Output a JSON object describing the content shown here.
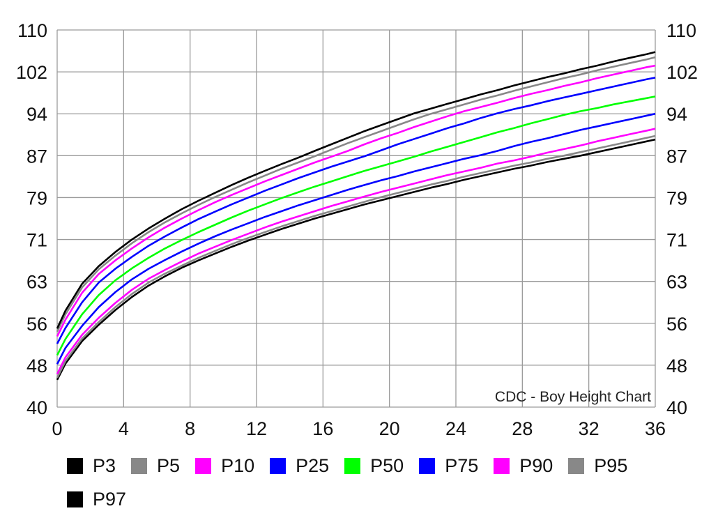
{
  "chart_data": {
    "type": "line",
    "description": "CDC - Boy Height Chart",
    "x_ticks": [
      "0",
      "4",
      "8",
      "12",
      "16",
      "20",
      "24",
      "28",
      "32",
      "36"
    ],
    "y_ticks": [
      "40",
      "48",
      "56",
      "63",
      "71",
      "79",
      "87",
      "94",
      "102",
      "110"
    ],
    "xlim": [
      0,
      36
    ],
    "ylim": [
      40,
      110
    ],
    "grid": true,
    "legend_position": "bottom",
    "x": [
      0,
      0.5,
      1.5,
      2.5,
      3.5,
      4.5,
      5.5,
      6.5,
      7.5,
      8.5,
      9.5,
      10.5,
      11.5,
      12.5,
      13.5,
      14.5,
      15.5,
      16.5,
      17.5,
      18.5,
      19.5,
      20.5,
      21.5,
      22.5,
      23.5,
      24.5,
      25.5,
      26.5,
      27.5,
      28.5,
      29.5,
      30.5,
      31.5,
      32.5,
      33.5,
      34.5,
      35.5,
      36
    ],
    "series": [
      {
        "name": "P3",
        "color": "#000000",
        "values": [
          45.2,
          48.3,
          52.6,
          55.7,
          58.2,
          60.4,
          62.3,
          64.0,
          65.6,
          67.0,
          68.3,
          69.6,
          70.8,
          71.9,
          73.0,
          74.0,
          75.0,
          75.9,
          76.8,
          77.7,
          78.5,
          79.3,
          80.1,
          80.9,
          81.6,
          82.4,
          83.1,
          83.8,
          84.5,
          85.1,
          85.8,
          86.4,
          87.0,
          87.6,
          88.2,
          88.8,
          89.4,
          89.7
        ]
      },
      {
        "name": "P5",
        "color": "#888888",
        "values": [
          45.6,
          48.8,
          53.1,
          56.2,
          58.7,
          60.9,
          62.8,
          64.5,
          66.0,
          67.5,
          68.8,
          70.1,
          71.3,
          72.4,
          73.5,
          74.5,
          75.5,
          76.4,
          77.3,
          78.2,
          79.1,
          79.9,
          80.7,
          81.5,
          82.2,
          83.0,
          83.7,
          84.4,
          85.1,
          85.7,
          86.4,
          87.0,
          87.6,
          88.2,
          88.8,
          89.4,
          90.0,
          90.3
        ]
      },
      {
        "name": "P10",
        "color": "#ff00ff",
        "values": [
          46.3,
          49.5,
          53.8,
          56.9,
          59.4,
          61.6,
          63.5,
          65.2,
          66.8,
          68.3,
          69.6,
          70.9,
          72.1,
          73.3,
          74.4,
          75.4,
          76.4,
          77.4,
          78.3,
          79.2,
          80.1,
          80.9,
          81.7,
          82.5,
          83.3,
          84.0,
          84.7,
          85.5,
          86.1,
          86.8,
          87.5,
          88.1,
          88.7,
          89.4,
          90.0,
          90.6,
          91.2,
          91.5
        ]
      },
      {
        "name": "P25",
        "color": "#0000ff",
        "values": [
          48.2,
          51.3,
          55.5,
          58.7,
          61.2,
          63.4,
          65.4,
          67.1,
          68.7,
          70.2,
          71.6,
          72.9,
          74.1,
          75.3,
          76.4,
          77.5,
          78.5,
          79.5,
          80.5,
          81.4,
          82.3,
          83.1,
          84.0,
          84.8,
          85.6,
          86.4,
          87.1,
          87.8,
          88.6,
          89.3,
          89.9,
          90.6,
          91.3,
          91.9,
          92.5,
          93.1,
          93.7,
          94.0
        ]
      },
      {
        "name": "P50",
        "color": "#00ff00",
        "values": [
          49.9,
          53.0,
          57.5,
          60.7,
          63.2,
          65.5,
          67.5,
          69.3,
          70.9,
          72.4,
          73.8,
          75.2,
          76.5,
          77.7,
          78.9,
          80.0,
          81.1,
          82.1,
          83.1,
          84.1,
          85.0,
          85.9,
          86.8,
          87.7,
          88.5,
          89.3,
          90.1,
          90.9,
          91.6,
          92.4,
          93.1,
          93.8,
          94.5,
          95.1,
          95.8,
          96.4,
          97.0,
          97.3
        ]
      },
      {
        "name": "P75",
        "color": "#0000ff",
        "values": [
          52.1,
          55.1,
          59.5,
          62.8,
          65.4,
          67.7,
          69.8,
          71.6,
          73.3,
          74.9,
          76.3,
          77.7,
          79.0,
          80.3,
          81.5,
          82.7,
          83.8,
          84.9,
          85.9,
          86.9,
          87.9,
          88.9,
          89.8,
          90.7,
          91.6,
          92.4,
          93.3,
          94.1,
          94.9,
          95.6,
          96.4,
          97.1,
          97.8,
          98.5,
          99.2,
          99.9,
          100.6,
          100.9
        ]
      },
      {
        "name": "P90",
        "color": "#ff00ff",
        "values": [
          53.5,
          56.6,
          61.1,
          64.4,
          67.0,
          69.3,
          71.4,
          73.3,
          75.0,
          76.6,
          78.1,
          79.5,
          80.8,
          82.1,
          83.3,
          84.5,
          85.7,
          86.8,
          87.8,
          88.9,
          89.9,
          90.8,
          91.8,
          92.7,
          93.6,
          94.5,
          95.3,
          96.1,
          97.0,
          97.8,
          98.5,
          99.3,
          100.0,
          100.8,
          101.5,
          102.2,
          102.9,
          103.2
        ]
      },
      {
        "name": "P95",
        "color": "#888888",
        "values": [
          54.4,
          57.5,
          62.0,
          65.3,
          67.9,
          70.3,
          72.4,
          74.3,
          76.0,
          77.6,
          79.1,
          80.5,
          81.9,
          83.2,
          84.5,
          85.7,
          86.9,
          88.0,
          89.1,
          90.1,
          91.1,
          92.1,
          93.1,
          94.0,
          94.9,
          95.8,
          96.7,
          97.5,
          98.4,
          99.2,
          100.0,
          100.8,
          101.5,
          102.3,
          103.0,
          103.7,
          104.4,
          104.8
        ]
      },
      {
        "name": "P97",
        "color": "#000000",
        "values": [
          55.0,
          58.1,
          62.6,
          65.9,
          68.6,
          71.0,
          73.1,
          75.0,
          76.8,
          78.4,
          79.9,
          81.4,
          82.8,
          84.1,
          85.4,
          86.6,
          87.8,
          88.9,
          90.0,
          91.1,
          92.1,
          93.1,
          94.1,
          95.0,
          95.9,
          96.8,
          97.7,
          98.5,
          99.4,
          100.2,
          101.0,
          101.7,
          102.5,
          103.2,
          104.0,
          104.7,
          105.4,
          105.8
        ]
      }
    ]
  }
}
